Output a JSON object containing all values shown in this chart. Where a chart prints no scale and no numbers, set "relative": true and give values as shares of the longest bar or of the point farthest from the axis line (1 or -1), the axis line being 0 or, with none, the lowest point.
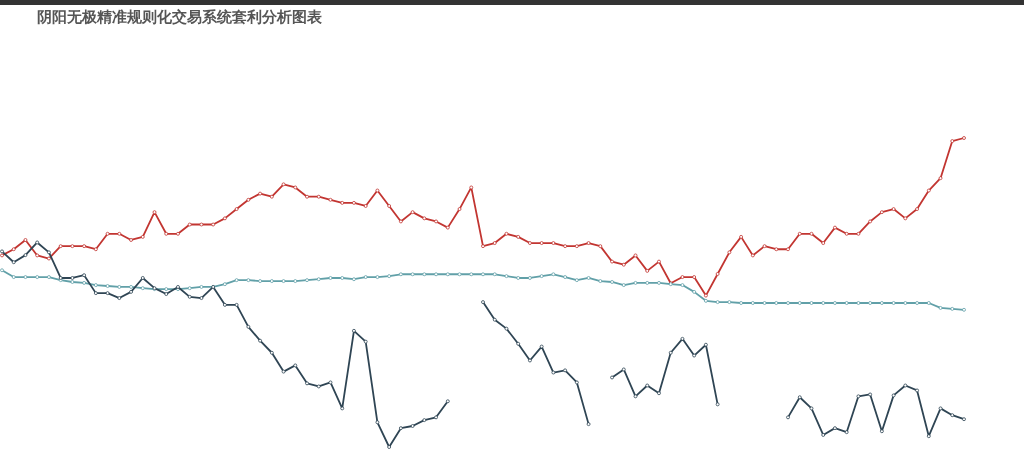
{
  "chart_data": {
    "type": "line",
    "title": "阴阳无极精准规则化交易系统套利分析图表",
    "relative": true,
    "marker": "circle",
    "categories": [
      null,
      null,
      null,
      null,
      null,
      null,
      null,
      null,
      null,
      null,
      null,
      null,
      null,
      null,
      null,
      null,
      null,
      null,
      null,
      null,
      null,
      null,
      null,
      null,
      null,
      null,
      null,
      null,
      null,
      null,
      null,
      null,
      null,
      null,
      null,
      null,
      null,
      null,
      null,
      null,
      null,
      null,
      null,
      null,
      null,
      null,
      null,
      null,
      null,
      null,
      null,
      null,
      null,
      null,
      null,
      null,
      null,
      null,
      null,
      null,
      null,
      null,
      null,
      null,
      null,
      null,
      null,
      null,
      null,
      null,
      null,
      null,
      null,
      null,
      null,
      null,
      null,
      null,
      null,
      null,
      null,
      null,
      null
    ],
    "series": [
      {
        "color": "#c23531",
        "values": [
          0.62,
          0.64,
          0.67,
          0.62,
          0.61,
          0.65,
          0.65,
          0.65,
          0.64,
          0.69,
          0.69,
          0.67,
          0.68,
          0.76,
          0.69,
          0.69,
          0.72,
          0.72,
          0.72,
          0.74,
          0.77,
          0.8,
          0.82,
          0.81,
          0.85,
          0.84,
          0.81,
          0.81,
          0.8,
          0.79,
          0.79,
          0.78,
          0.83,
          0.78,
          0.73,
          0.76,
          0.74,
          0.73,
          0.71,
          0.77,
          0.84,
          0.65,
          0.66,
          0.69,
          0.68,
          0.66,
          0.66,
          0.66,
          0.65,
          0.65,
          0.66,
          0.65,
          0.6,
          0.59,
          0.62,
          0.57,
          0.6,
          0.53,
          0.55,
          0.55,
          0.49,
          0.56,
          0.63,
          0.68,
          0.62,
          0.65,
          0.64,
          0.64,
          0.69,
          0.69,
          0.66,
          0.71,
          0.69,
          0.69,
          0.73,
          0.76,
          0.77,
          0.74,
          0.77,
          0.83,
          0.87,
          0.99,
          1.0
        ]
      },
      {
        "color": "#61a0a8",
        "values": [
          0.572,
          0.55,
          0.55,
          0.55,
          0.55,
          0.54,
          0.534,
          0.531,
          0.524,
          0.521,
          0.518,
          0.518,
          0.514,
          0.511,
          0.511,
          0.511,
          0.514,
          0.518,
          0.518,
          0.527,
          0.54,
          0.54,
          0.537,
          0.537,
          0.537,
          0.537,
          0.54,
          0.543,
          0.547,
          0.547,
          0.543,
          0.55,
          0.55,
          0.553,
          0.559,
          0.559,
          0.559,
          0.559,
          0.559,
          0.559,
          0.559,
          0.559,
          0.559,
          0.553,
          0.547,
          0.547,
          0.553,
          0.559,
          0.55,
          0.54,
          0.547,
          0.537,
          0.534,
          0.524,
          0.531,
          0.531,
          0.531,
          0.527,
          0.524,
          0.502,
          0.473,
          0.469,
          0.469,
          0.466,
          0.466,
          0.466,
          0.466,
          0.466,
          0.466,
          0.466,
          0.466,
          0.466,
          0.466,
          0.466,
          0.466,
          0.466,
          0.466,
          0.466,
          0.466,
          0.466,
          0.45,
          0.447,
          0.444
        ]
      },
      {
        "color": "#2f4554",
        "values": [
          0.633,
          0.598,
          0.621,
          0.662,
          0.63,
          0.547,
          0.547,
          0.556,
          0.498,
          0.498,
          0.482,
          0.502,
          0.547,
          0.514,
          0.495,
          0.518,
          0.486,
          0.482,
          0.518,
          0.46,
          0.46,
          0.389,
          0.344,
          0.305,
          0.244,
          0.264,
          0.206,
          0.196,
          0.209,
          0.125,
          0.376,
          0.341,
          0.08,
          0.0,
          0.061,
          0.068,
          0.087,
          0.096,
          0.148,
          null,
          null,
          0.469,
          0.412,
          0.383,
          0.334,
          0.28,
          0.325,
          0.241,
          0.248,
          0.209,
          0.074,
          null,
          0.225,
          0.251,
          0.164,
          0.199,
          0.174,
          0.305,
          0.35,
          0.296,
          0.331,
          0.138,
          null,
          null,
          null,
          null,
          null,
          0.096,
          0.161,
          0.125,
          0.039,
          0.061,
          0.048,
          0.164,
          0.17,
          0.051,
          0.167,
          0.199,
          0.183,
          0.035,
          0.125,
          0.103,
          0.09
        ]
      }
    ]
  }
}
